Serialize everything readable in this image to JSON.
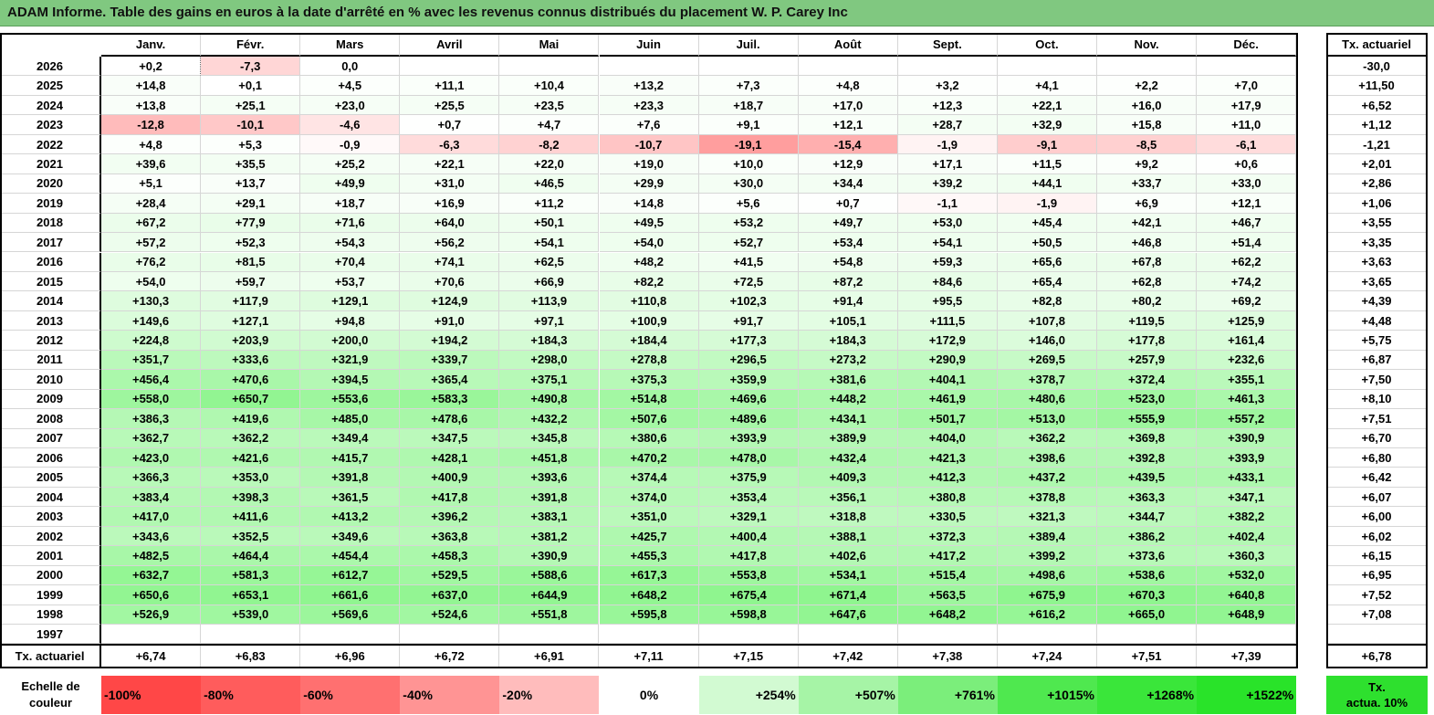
{
  "title": "ADAM Informe. Table des gains en euros à la date d'arrêté en % avec les revenus connus distribués du placement W. P. Carey Inc",
  "chart_data": {
    "type": "table",
    "months": [
      "Janv.",
      "Févr.",
      "Mars",
      "Avril",
      "Mai",
      "Juin",
      "Juil.",
      "Août",
      "Sept.",
      "Oct.",
      "Nov.",
      "Déc."
    ],
    "right_header": "Tx. actuariel",
    "rows": [
      {
        "year": "2026",
        "values": [
          "+0,2",
          "-7,3",
          "0,0",
          "",
          "",
          "",
          "",
          "",
          "",
          "",
          "",
          ""
        ],
        "rate": "-30,0"
      },
      {
        "year": "2025",
        "values": [
          "+14,8",
          "+0,1",
          "+4,5",
          "+11,1",
          "+10,4",
          "+13,2",
          "+7,3",
          "+4,8",
          "+3,2",
          "+4,1",
          "+2,2",
          "+7,0"
        ],
        "rate": "+11,50"
      },
      {
        "year": "2024",
        "values": [
          "+13,8",
          "+25,1",
          "+23,0",
          "+25,5",
          "+23,5",
          "+23,3",
          "+18,7",
          "+17,0",
          "+12,3",
          "+22,1",
          "+16,0",
          "+17,9"
        ],
        "rate": "+6,52"
      },
      {
        "year": "2023",
        "values": [
          "-12,8",
          "-10,1",
          "-4,6",
          "+0,7",
          "+4,7",
          "+7,6",
          "+9,1",
          "+12,1",
          "+28,7",
          "+32,9",
          "+15,8",
          "+11,0"
        ],
        "rate": "+1,12"
      },
      {
        "year": "2022",
        "values": [
          "+4,8",
          "+5,3",
          "-0,9",
          "-6,3",
          "-8,2",
          "-10,7",
          "-19,1",
          "-15,4",
          "-1,9",
          "-9,1",
          "-8,5",
          "-6,1"
        ],
        "rate": "-1,21"
      },
      {
        "year": "2021",
        "values": [
          "+39,6",
          "+35,5",
          "+25,2",
          "+22,1",
          "+22,0",
          "+19,0",
          "+10,0",
          "+12,9",
          "+17,1",
          "+11,5",
          "+9,2",
          "+0,6"
        ],
        "rate": "+2,01"
      },
      {
        "year": "2020",
        "values": [
          "+5,1",
          "+13,7",
          "+49,9",
          "+31,0",
          "+46,5",
          "+29,9",
          "+30,0",
          "+34,4",
          "+39,2",
          "+44,1",
          "+33,7",
          "+33,0"
        ],
        "rate": "+2,86"
      },
      {
        "year": "2019",
        "values": [
          "+28,4",
          "+29,1",
          "+18,7",
          "+16,9",
          "+11,2",
          "+14,8",
          "+5,6",
          "+0,7",
          "-1,1",
          "-1,9",
          "+6,9",
          "+12,1"
        ],
        "rate": "+1,06"
      },
      {
        "year": "2018",
        "values": [
          "+67,2",
          "+77,9",
          "+71,6",
          "+64,0",
          "+50,1",
          "+49,5",
          "+53,2",
          "+49,7",
          "+53,0",
          "+45,4",
          "+42,1",
          "+46,7"
        ],
        "rate": "+3,55"
      },
      {
        "year": "2017",
        "values": [
          "+57,2",
          "+52,3",
          "+54,3",
          "+56,2",
          "+54,1",
          "+54,0",
          "+52,7",
          "+53,4",
          "+54,1",
          "+50,5",
          "+46,8",
          "+51,4"
        ],
        "rate": "+3,35"
      },
      {
        "year": "2016",
        "values": [
          "+76,2",
          "+81,5",
          "+70,4",
          "+74,1",
          "+62,5",
          "+48,2",
          "+41,5",
          "+54,8",
          "+59,3",
          "+65,6",
          "+67,8",
          "+62,2"
        ],
        "rate": "+3,63"
      },
      {
        "year": "2015",
        "values": [
          "+54,0",
          "+59,7",
          "+53,7",
          "+70,6",
          "+66,9",
          "+82,2",
          "+72,5",
          "+87,2",
          "+84,6",
          "+65,4",
          "+62,8",
          "+74,2"
        ],
        "rate": "+3,65"
      },
      {
        "year": "2014",
        "values": [
          "+130,3",
          "+117,9",
          "+129,1",
          "+124,9",
          "+113,9",
          "+110,8",
          "+102,3",
          "+91,4",
          "+95,5",
          "+82,8",
          "+80,2",
          "+69,2"
        ],
        "rate": "+4,39"
      },
      {
        "year": "2013",
        "values": [
          "+149,6",
          "+127,1",
          "+94,8",
          "+91,0",
          "+97,1",
          "+100,9",
          "+91,7",
          "+105,1",
          "+111,5",
          "+107,8",
          "+119,5",
          "+125,9"
        ],
        "rate": "+4,48"
      },
      {
        "year": "2012",
        "values": [
          "+224,8",
          "+203,9",
          "+200,0",
          "+194,2",
          "+184,3",
          "+184,4",
          "+177,3",
          "+184,3",
          "+172,9",
          "+146,0",
          "+177,8",
          "+161,4"
        ],
        "rate": "+5,75"
      },
      {
        "year": "2011",
        "values": [
          "+351,7",
          "+333,6",
          "+321,9",
          "+339,7",
          "+298,0",
          "+278,8",
          "+296,5",
          "+273,2",
          "+290,9",
          "+269,5",
          "+257,9",
          "+232,6"
        ],
        "rate": "+6,87"
      },
      {
        "year": "2010",
        "values": [
          "+456,4",
          "+470,6",
          "+394,5",
          "+365,4",
          "+375,1",
          "+375,3",
          "+359,9",
          "+381,6",
          "+404,1",
          "+378,7",
          "+372,4",
          "+355,1"
        ],
        "rate": "+7,50"
      },
      {
        "year": "2009",
        "values": [
          "+558,0",
          "+650,7",
          "+553,6",
          "+583,3",
          "+490,8",
          "+514,8",
          "+469,6",
          "+448,2",
          "+461,9",
          "+480,6",
          "+523,0",
          "+461,3"
        ],
        "rate": "+8,10"
      },
      {
        "year": "2008",
        "values": [
          "+386,3",
          "+419,6",
          "+485,0",
          "+478,6",
          "+432,2",
          "+507,6",
          "+489,6",
          "+434,1",
          "+501,7",
          "+513,0",
          "+555,9",
          "+557,2"
        ],
        "rate": "+7,51"
      },
      {
        "year": "2007",
        "values": [
          "+362,7",
          "+362,2",
          "+349,4",
          "+347,5",
          "+345,8",
          "+380,6",
          "+393,9",
          "+389,9",
          "+404,0",
          "+362,2",
          "+369,8",
          "+390,9"
        ],
        "rate": "+6,70"
      },
      {
        "year": "2006",
        "values": [
          "+423,0",
          "+421,6",
          "+415,7",
          "+428,1",
          "+451,8",
          "+470,2",
          "+478,0",
          "+432,4",
          "+421,3",
          "+398,6",
          "+392,8",
          "+393,9"
        ],
        "rate": "+6,80"
      },
      {
        "year": "2005",
        "values": [
          "+366,3",
          "+353,0",
          "+391,8",
          "+400,9",
          "+393,6",
          "+374,4",
          "+375,9",
          "+409,3",
          "+412,3",
          "+437,2",
          "+439,5",
          "+433,1"
        ],
        "rate": "+6,42"
      },
      {
        "year": "2004",
        "values": [
          "+383,4",
          "+398,3",
          "+361,5",
          "+417,8",
          "+391,8",
          "+374,0",
          "+353,4",
          "+356,1",
          "+380,8",
          "+378,8",
          "+363,3",
          "+347,1"
        ],
        "rate": "+6,07"
      },
      {
        "year": "2003",
        "values": [
          "+417,0",
          "+411,6",
          "+413,2",
          "+396,2",
          "+383,1",
          "+351,0",
          "+329,1",
          "+318,8",
          "+330,5",
          "+321,3",
          "+344,7",
          "+382,2"
        ],
        "rate": "+6,00"
      },
      {
        "year": "2002",
        "values": [
          "+343,6",
          "+352,5",
          "+349,6",
          "+363,8",
          "+381,2",
          "+425,7",
          "+400,4",
          "+388,1",
          "+372,3",
          "+389,4",
          "+386,2",
          "+402,4"
        ],
        "rate": "+6,02"
      },
      {
        "year": "2001",
        "values": [
          "+482,5",
          "+464,4",
          "+454,4",
          "+458,3",
          "+390,9",
          "+455,3",
          "+417,8",
          "+402,6",
          "+417,2",
          "+399,2",
          "+373,6",
          "+360,3"
        ],
        "rate": "+6,15"
      },
      {
        "year": "2000",
        "values": [
          "+632,7",
          "+581,3",
          "+612,7",
          "+529,5",
          "+588,6",
          "+617,3",
          "+553,8",
          "+534,1",
          "+515,4",
          "+498,6",
          "+538,6",
          "+532,0"
        ],
        "rate": "+6,95"
      },
      {
        "year": "1999",
        "values": [
          "+650,6",
          "+653,1",
          "+661,6",
          "+637,0",
          "+644,9",
          "+648,2",
          "+675,4",
          "+671,4",
          "+563,5",
          "+675,9",
          "+670,3",
          "+640,8"
        ],
        "rate": "+7,52"
      },
      {
        "year": "1998",
        "values": [
          "+526,9",
          "+539,0",
          "+569,6",
          "+524,6",
          "+551,8",
          "+595,8",
          "+598,8",
          "+647,6",
          "+648,2",
          "+616,2",
          "+665,0",
          "+648,9"
        ],
        "rate": "+7,08"
      },
      {
        "year": "1997",
        "values": [
          "",
          "",
          "",
          "",
          "",
          "",
          "",
          "",
          "",
          "",
          "",
          ""
        ],
        "rate": ""
      }
    ],
    "footer": {
      "label": "Tx. actuariel",
      "values": [
        "+6,74",
        "+6,83",
        "+6,96",
        "+6,72",
        "+6,91",
        "+7,11",
        "+7,15",
        "+7,42",
        "+7,38",
        "+7,24",
        "+7,51",
        "+7,39"
      ],
      "rate": "+6,78"
    },
    "scale": {
      "label_line1": "Echelle de",
      "label_line2": "couleur",
      "entries": [
        {
          "text": "-100%",
          "color": "#ff4747"
        },
        {
          "text": "-80%",
          "color": "#ff5c5c"
        },
        {
          "text": "-60%",
          "color": "#ff7070"
        },
        {
          "text": "-40%",
          "color": "#ff9494"
        },
        {
          "text": "-20%",
          "color": "#ffbcbc"
        },
        {
          "text": "0%",
          "color": "#ffffff"
        },
        {
          "text": "+254%",
          "color": "#d2fad2"
        },
        {
          "text": "+507%",
          "color": "#a6f4a6"
        },
        {
          "text": "+761%",
          "color": "#7bee7b"
        },
        {
          "text": "+1015%",
          "color": "#4fe84f"
        },
        {
          "text": "+1268%",
          "color": "#3ae63a"
        },
        {
          "text": "+1522%",
          "color": "#29e329"
        }
      ],
      "rate_line1": "Tx.",
      "rate_line2": "actua. 10%",
      "rate_color": "#2ee02e"
    },
    "colors": {
      "header_bg": "#80c880",
      "negative_max": "#ff9a9a",
      "positive_max": "#8ef58e"
    }
  }
}
